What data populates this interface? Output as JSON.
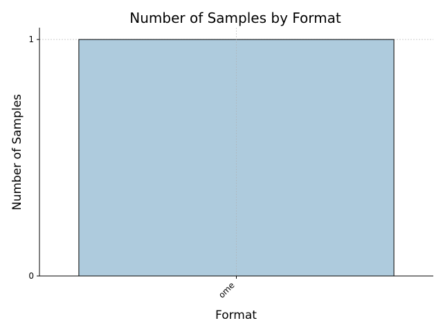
{
  "chart_data": {
    "type": "bar",
    "title": "Number of Samples by Format",
    "xlabel": "Format",
    "ylabel": "Number of Samples",
    "categories": [
      "ome"
    ],
    "values": [
      1
    ],
    "ylim": [
      0,
      1.05
    ],
    "yticks": [
      "0",
      "1"
    ],
    "grid": true,
    "legend": "none",
    "colors": {
      "bar_fill": "#aecbdd",
      "bar_edge": "#000000",
      "axis": "#000000",
      "grid": "#b0b0b0"
    }
  }
}
